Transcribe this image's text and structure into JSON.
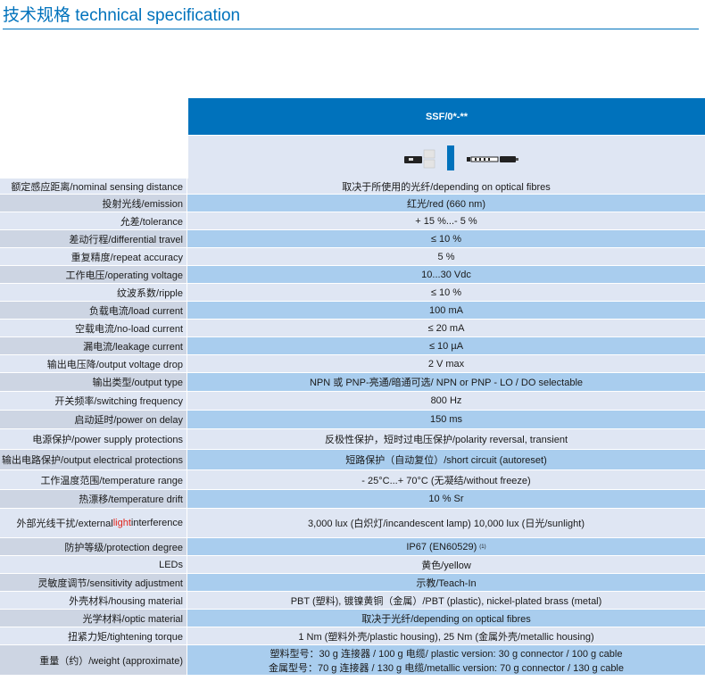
{
  "title": "技术规格 technical specification",
  "model": "SSF/0*-**",
  "rows": [
    {
      "label": "额定感应距离/nominal sensing distance",
      "value": "取决于所使用的光纤/depending on optical fibres"
    },
    {
      "label": "投射光线/emission",
      "value": "红光/red (660 nm)"
    },
    {
      "label": "允差/tolerance",
      "value": "+ 15 %...- 5 %"
    },
    {
      "label": "差动行程/differential travel",
      "value": "≤ 10 %"
    },
    {
      "label": "重复精度/repeat accuracy",
      "value": "5 %"
    },
    {
      "label": "工作电压/operating voltage",
      "value": "10...30 Vdc"
    },
    {
      "label": "纹波系数/ripple",
      "value": "≤ 10 %"
    },
    {
      "label": "负载电流/load current",
      "value": "100 mA"
    },
    {
      "label": "空载电流/no-load current",
      "value": "≤ 20 mA"
    },
    {
      "label": "漏电流/leakage current",
      "value": "≤ 10 µA"
    },
    {
      "label": "输出电压降/output voltage drop",
      "value": "2 V max"
    },
    {
      "label": "输出类型/output type",
      "value": "NPN 或 PNP-亮通/暗通可选/ NPN or PNP - LO / DO selectable"
    },
    {
      "label": "开关频率/switching frequency",
      "value": "800 Hz"
    },
    {
      "label": "启动延时/power on delay",
      "value": "150 ms"
    },
    {
      "label": "电源保护/power supply protections",
      "value": "反极性保护，短时过电压保护/polarity reversal, transient"
    },
    {
      "label": "输出电路保护/output electrical protections",
      "value": "短路保护（自动复位）/short circuit (autoreset)"
    },
    {
      "label": "工作温度范围/temperature range",
      "value": "- 25°C...+ 70°C (无凝结/without freeze)"
    },
    {
      "label": "热漂移/temperature drift",
      "value": "10 % Sr"
    },
    {
      "label_pre": "外部光线干扰/external ",
      "label_hl": "light",
      "label_post": " interference",
      "value": "3,000 lux (白炽灯/incandescent lamp) 10,000 lux (日光/sunlight)"
    },
    {
      "label": "防护等级/protection degree",
      "value": "IP67 (EN60529)",
      "note": "(1)"
    },
    {
      "label": "LEDs",
      "value": "黄色/yellow"
    },
    {
      "label": "灵敏度调节/sensitivity  adjustment",
      "value": "示教/Teach-In"
    },
    {
      "label": "外壳材料/housing material",
      "value": "PBT (塑料), 镀镍黄铜（金属）/PBT (plastic), nickel-plated brass (metal)"
    },
    {
      "label": "光学材料/optic material",
      "value": "取决于光纤/depending on optical fibres"
    },
    {
      "label": "扭紧力矩/tightening torque",
      "value": "1 Nm (塑料外壳/plastic housing), 25 Nm (金属外壳/metallic housing)"
    },
    {
      "label": "重量（约）/weight (approximate)",
      "value": "塑料型号：30 g 连接器 / 100 g 电缆/ plastic version: 30 g connector / 100 g cable",
      "value2": "金属型号：70 g 连接器 / 130 g 电缆/metallic version: 70 g connector / 130 g cable"
    }
  ]
}
